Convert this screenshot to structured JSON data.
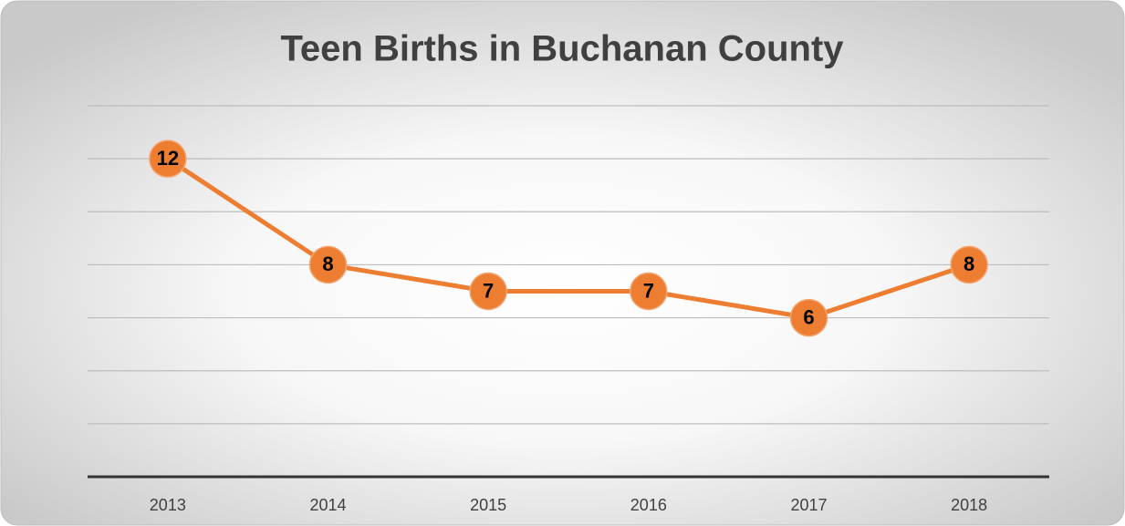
{
  "chart_data": {
    "type": "line",
    "title": "Teen Births in Buchanan County",
    "categories": [
      "2013",
      "2014",
      "2015",
      "2016",
      "2017",
      "2018"
    ],
    "values": [
      12,
      8,
      7,
      7,
      6,
      8
    ],
    "color": "#ed7d31",
    "ylim": [
      0,
      14
    ],
    "yticks": [
      0,
      2,
      4,
      6,
      8,
      10,
      12,
      14
    ],
    "grid": true
  }
}
